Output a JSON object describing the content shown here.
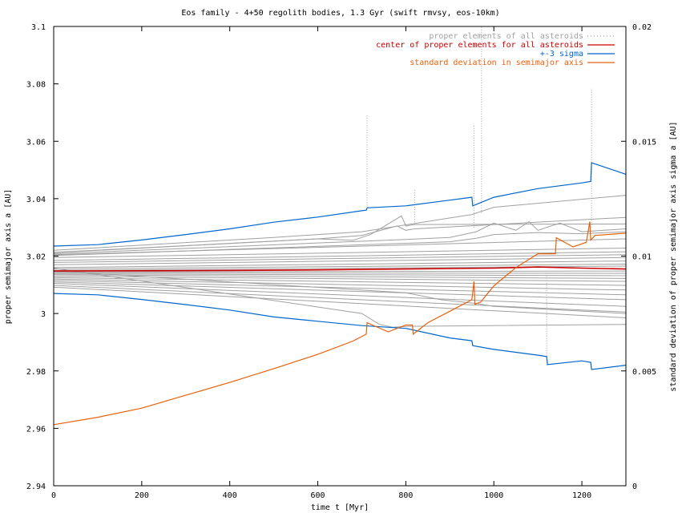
{
  "chart_data": {
    "type": "line",
    "title": "Eos family - 4+50 regolith bodies, 1.3 Gyr (swift rmvsy, eos-10km)",
    "xlabel": "time t [Myr]",
    "ylabel": "proper semimajor axis a [AU]",
    "y2label": "standard deviation of proper semimajor axis  sigma a [AU]",
    "xlim": [
      0,
      1300
    ],
    "ylim": [
      2.94,
      3.1
    ],
    "y2lim": [
      0,
      0.02
    ],
    "x_ticks": [
      "0",
      "200",
      "400",
      "600",
      "800",
      "1000",
      "1200"
    ],
    "y_ticks": [
      "2.94",
      "2.96",
      "2.98",
      "3",
      "3.02",
      "3.04",
      "3.06",
      "3.08",
      "3.1"
    ],
    "y2_ticks": [
      "0",
      "0.005",
      "0.01",
      "0.015",
      "0.02"
    ],
    "grid": false,
    "legend_position": "top-right",
    "colors": {
      "asteroids": "#a0a0a0",
      "center": "#cc0000",
      "sigma3": "#0066cc",
      "stddev": "#e8600a"
    },
    "legend": [
      {
        "label": "proper elements of all asteroids",
        "color": "#a0a0a0",
        "style": "dots"
      },
      {
        "label": "center of proper elements for all asteroids",
        "color": "#cc0000",
        "style": "line"
      },
      {
        "label": "+-3 sigma",
        "color": "#0066cc",
        "style": "line"
      },
      {
        "label": "standard deviation in semimajor axis",
        "color": "#e8600a",
        "style": "line"
      }
    ],
    "series": [
      {
        "name": "center of proper elements for all asteroids",
        "axis": "left",
        "color": "#cc0000",
        "x": [
          0,
          200,
          400,
          600,
          800,
          1000,
          1100,
          1200,
          1300
        ],
        "y": [
          3.0148,
          3.0149,
          3.015,
          3.0152,
          3.0155,
          3.0158,
          3.0162,
          3.0158,
          3.0155
        ]
      },
      {
        "name": "+3 sigma",
        "axis": "left",
        "color": "#0066cc",
        "x": [
          0,
          100,
          200,
          300,
          400,
          500,
          600,
          700,
          710,
          712,
          800,
          900,
          950,
          952,
          1000,
          1100,
          1200,
          1220,
          1222,
          1300
        ],
        "y": [
          3.0235,
          3.024,
          3.0256,
          3.0275,
          3.0295,
          3.0318,
          3.0336,
          3.0358,
          3.036,
          3.0368,
          3.0375,
          3.0395,
          3.0405,
          3.0375,
          3.0405,
          3.0435,
          3.0455,
          3.046,
          3.0525,
          3.0485
        ]
      },
      {
        "name": "-3 sigma",
        "axis": "left",
        "color": "#0066cc",
        "x": [
          0,
          100,
          200,
          300,
          400,
          500,
          600,
          700,
          800,
          900,
          950,
          952,
          1000,
          1100,
          1120,
          1122,
          1200,
          1220,
          1222,
          1300
        ],
        "y": [
          3.007,
          3.0065,
          3.0049,
          3.0031,
          3.0012,
          2.9988,
          2.9973,
          2.9958,
          2.9948,
          2.9915,
          2.9905,
          2.9888,
          2.9875,
          2.9855,
          2.985,
          2.9822,
          2.9835,
          2.983,
          2.9805,
          2.982
        ]
      },
      {
        "name": "standard deviation in semimajor axis",
        "axis": "right",
        "color": "#e8600a",
        "x": [
          0,
          100,
          200,
          300,
          400,
          500,
          600,
          680,
          710,
          712,
          760,
          800,
          815,
          817,
          850,
          900,
          950,
          955,
          957,
          970,
          1000,
          1050,
          1100,
          1140,
          1142,
          1180,
          1210,
          1218,
          1220,
          1230,
          1300
        ],
        "y": [
          0.00266,
          0.00298,
          0.00338,
          0.00394,
          0.0045,
          0.0051,
          0.00572,
          0.0063,
          0.0066,
          0.0071,
          0.0067,
          0.007,
          0.007,
          0.0066,
          0.0071,
          0.0076,
          0.0081,
          0.0089,
          0.0079,
          0.008,
          0.0087,
          0.0095,
          0.0101,
          0.0101,
          0.0108,
          0.0104,
          0.0106,
          0.0115,
          0.0107,
          0.0109,
          0.011
        ]
      }
    ],
    "asteroid_tracks": [
      {
        "x": [
          0,
          1300
        ],
        "y": [
          3.0195,
          3.0228
        ]
      },
      {
        "x": [
          0,
          1300
        ],
        "y": [
          3.0185,
          3.0215
        ]
      },
      {
        "x": [
          0,
          1300
        ],
        "y": [
          3.0178,
          3.0205
        ]
      },
      {
        "x": [
          0,
          1300
        ],
        "y": [
          3.017,
          3.0195
        ]
      },
      {
        "x": [
          0,
          1300
        ],
        "y": [
          3.016,
          3.0183
        ]
      },
      {
        "x": [
          0,
          1300
        ],
        "y": [
          3.0155,
          3.0172
        ]
      },
      {
        "x": [
          0,
          1300
        ],
        "y": [
          3.015,
          3.0165
        ]
      },
      {
        "x": [
          0,
          1300
        ],
        "y": [
          3.0145,
          3.0148
        ]
      },
      {
        "x": [
          0,
          1300
        ],
        "y": [
          3.0142,
          3.014
        ]
      },
      {
        "x": [
          0,
          1300
        ],
        "y": [
          3.0138,
          3.0132
        ]
      },
      {
        "x": [
          0,
          1300
        ],
        "y": [
          3.0135,
          3.0122
        ]
      },
      {
        "x": [
          0,
          1300
        ],
        "y": [
          3.013,
          3.0112
        ]
      },
      {
        "x": [
          0,
          1300
        ],
        "y": [
          3.0125,
          3.0098
        ]
      },
      {
        "x": [
          0,
          1300
        ],
        "y": [
          3.012,
          3.0082
        ]
      },
      {
        "x": [
          0,
          1300
        ],
        "y": [
          3.0115,
          3.0065
        ]
      },
      {
        "x": [
          0,
          1300
        ],
        "y": [
          3.011,
          3.0048
        ]
      },
      {
        "x": [
          0,
          1300
        ],
        "y": [
          3.0105,
          3.0025
        ]
      },
      {
        "x": [
          0,
          1300
        ],
        "y": [
          3.0098,
          3.0005
        ]
      },
      {
        "x": [
          0,
          1300
        ],
        "y": [
          3.0092,
          2.9985
        ]
      },
      {
        "x": [
          0,
          1300
        ],
        "y": [
          3.0205,
          3.026
        ]
      },
      {
        "x": [
          0,
          600,
          700,
          780,
          800,
          820,
          1300
        ],
        "y": [
          3.0212,
          3.026,
          3.0272,
          3.0305,
          3.029,
          3.0295,
          3.0335
        ]
      },
      {
        "x": [
          0,
          500,
          600,
          700,
          950,
          1000,
          1300
        ],
        "y": [
          3.022,
          3.0265,
          3.0275,
          3.0285,
          3.0345,
          3.037,
          3.0412
        ]
      },
      {
        "x": [
          0,
          600,
          680,
          720,
          790,
          800,
          820,
          1300
        ],
        "y": [
          3.0213,
          3.026,
          3.0255,
          3.0275,
          3.034,
          3.0305,
          3.031,
          3.0312
        ]
      },
      {
        "x": [
          0,
          800,
          900,
          960,
          1000,
          1050,
          1080,
          1100,
          1150,
          1200,
          1300
        ],
        "y": [
          3.0208,
          3.0258,
          3.0265,
          3.0285,
          3.0315,
          3.029,
          3.032,
          3.029,
          3.0315,
          3.0285,
          3.0295
        ]
      },
      {
        "x": [
          0,
          900,
          960,
          1000,
          1100,
          1200,
          1300
        ],
        "y": [
          3.0202,
          3.025,
          3.0262,
          3.0275,
          3.0282,
          3.0278,
          3.0285
        ]
      },
      {
        "x": [
          0,
          700,
          740,
          770,
          800,
          1300
        ],
        "y": [
          3.0158,
          3.0,
          2.9962,
          2.9952,
          2.9955,
          2.9962
        ]
      },
      {
        "x": [
          0,
          800,
          880,
          960,
          1000,
          1300
        ],
        "y": [
          3.0148,
          3.0072,
          3.0048,
          3.0035,
          3.0025,
          3.0
        ]
      }
    ],
    "asteroid_spikes": [
      {
        "x": 712,
        "y": [
          3.036,
          3.069
        ]
      },
      {
        "x": 820,
        "y": [
          3.031,
          3.043
        ]
      },
      {
        "x": 955,
        "y": [
          3.03,
          3.066
        ]
      },
      {
        "x": 972,
        "y": [
          3.035,
          3.1
        ]
      },
      {
        "x": 1120,
        "y": [
          2.982,
          3.014
        ]
      },
      {
        "x": 1222,
        "y": [
          3.03,
          3.078
        ]
      }
    ]
  }
}
